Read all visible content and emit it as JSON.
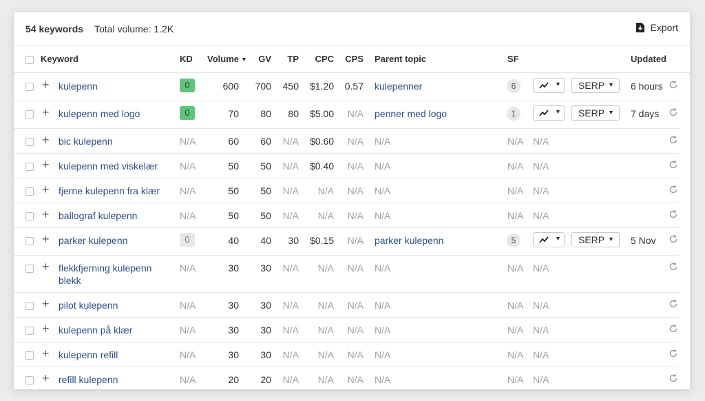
{
  "summary": {
    "keyword_count": "54 keywords",
    "total_volume": "Total volume: 1.2K",
    "export_label": "Export"
  },
  "headers": {
    "keyword": "Keyword",
    "kd": "KD",
    "volume": "Volume",
    "gv": "GV",
    "tp": "TP",
    "cpc": "CPC",
    "cps": "CPS",
    "parent_topic": "Parent topic",
    "sf": "SF",
    "updated": "Updated"
  },
  "colors": {
    "kd_easy": "#61c47e",
    "kd_neutral": "#e8e8e8",
    "link": "#2a4f8a",
    "na": "#a0a0a0"
  },
  "serp_label": "SERP",
  "rows": [
    {
      "keyword": "kulepenn",
      "kd": "0",
      "kd_level": "green",
      "volume": "600",
      "gv": "700",
      "tp": "450",
      "cpc": "$1.20",
      "cps": "0.57",
      "parent_topic": "kulepenner",
      "sf": "6",
      "updated": "6 hours",
      "has_controls": true
    },
    {
      "keyword": "kulepenn med logo",
      "kd": "0",
      "kd_level": "green",
      "volume": "70",
      "gv": "80",
      "tp": "80",
      "cpc": "$5.00",
      "cps": "N/A",
      "parent_topic": "penner med logo",
      "sf": "1",
      "updated": "7 days",
      "has_controls": true
    },
    {
      "keyword": "bic kulepenn",
      "kd": "N/A",
      "volume": "60",
      "gv": "60",
      "tp": "N/A",
      "cpc": "$0.60",
      "cps": "N/A",
      "parent_topic": "N/A",
      "sf": "N/A",
      "extra_na": "N/A",
      "has_controls": false
    },
    {
      "keyword": "kulepenn med viskelær",
      "kd": "N/A",
      "volume": "50",
      "gv": "50",
      "tp": "N/A",
      "cpc": "$0.40",
      "cps": "N/A",
      "parent_topic": "N/A",
      "sf": "N/A",
      "extra_na": "N/A",
      "has_controls": false
    },
    {
      "keyword": "fjerne kulepenn fra klær",
      "kd": "N/A",
      "volume": "50",
      "gv": "50",
      "tp": "N/A",
      "cpc": "N/A",
      "cps": "N/A",
      "parent_topic": "N/A",
      "sf": "N/A",
      "extra_na": "N/A",
      "has_controls": false
    },
    {
      "keyword": "ballograf kulepenn",
      "kd": "N/A",
      "volume": "50",
      "gv": "50",
      "tp": "N/A",
      "cpc": "N/A",
      "cps": "N/A",
      "parent_topic": "N/A",
      "sf": "N/A",
      "extra_na": "N/A",
      "has_controls": false
    },
    {
      "keyword": "parker kulepenn",
      "kd": "0",
      "kd_level": "grey",
      "volume": "40",
      "gv": "40",
      "tp": "30",
      "cpc": "$0.15",
      "cps": "N/A",
      "parent_topic": "parker kulepenn",
      "sf": "5",
      "updated": "5 Nov",
      "has_controls": true
    },
    {
      "keyword": "flekkfjerning kulepenn blekk",
      "kd": "N/A",
      "volume": "30",
      "gv": "30",
      "tp": "N/A",
      "cpc": "N/A",
      "cps": "N/A",
      "parent_topic": "N/A",
      "sf": "N/A",
      "extra_na": "N/A",
      "has_controls": false
    },
    {
      "keyword": "pilot kulepenn",
      "kd": "N/A",
      "volume": "30",
      "gv": "30",
      "tp": "N/A",
      "cpc": "N/A",
      "cps": "N/A",
      "parent_topic": "N/A",
      "sf": "N/A",
      "extra_na": "N/A",
      "has_controls": false
    },
    {
      "keyword": "kulepenn på klær",
      "kd": "N/A",
      "volume": "30",
      "gv": "30",
      "tp": "N/A",
      "cpc": "N/A",
      "cps": "N/A",
      "parent_topic": "N/A",
      "sf": "N/A",
      "extra_na": "N/A",
      "has_controls": false
    },
    {
      "keyword": "kulepenn refill",
      "kd": "N/A",
      "volume": "30",
      "gv": "30",
      "tp": "N/A",
      "cpc": "N/A",
      "cps": "N/A",
      "parent_topic": "N/A",
      "sf": "N/A",
      "extra_na": "N/A",
      "has_controls": false
    },
    {
      "keyword": "refill kulepenn",
      "kd": "N/A",
      "volume": "20",
      "gv": "20",
      "tp": "N/A",
      "cpc": "N/A",
      "cps": "N/A",
      "parent_topic": "N/A",
      "sf": "N/A",
      "extra_na": "N/A",
      "has_controls": false
    }
  ]
}
